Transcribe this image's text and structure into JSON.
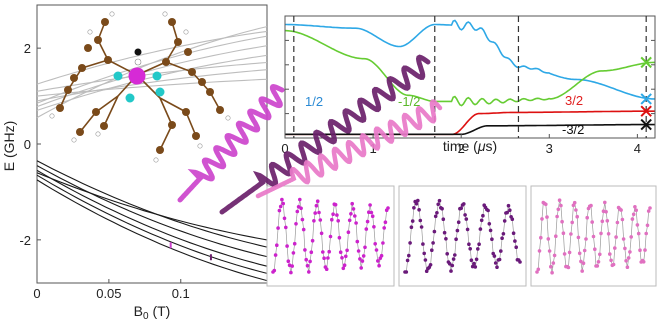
{
  "chart_data": [
    {
      "type": "line",
      "panel": "zeeman-levels",
      "xlabel": "B",
      "xlabel_sub": "0",
      "xlabel_unit": " (T)",
      "ylabel": "E (GHz)",
      "xlim": [
        0,
        0.16
      ],
      "ylim": [
        -2.9,
        2.9
      ],
      "xticks": [
        "0",
        "0.05",
        "0.1"
      ],
      "xtick_values": [
        0,
        0.05,
        0.1
      ],
      "yticks": [
        "2",
        "0",
        "-2"
      ],
      "ytick_values": [
        2,
        0,
        -2
      ],
      "grid": false,
      "series": [
        {
          "group": "upper",
          "color": "#bdbdbd",
          "values": [
            [
              0,
              0.7
            ],
            [
              0.16,
              1.85
            ]
          ]
        },
        {
          "group": "upper",
          "color": "#bdbdbd",
          "values": [
            [
              0,
              0.78
            ],
            [
              0.16,
              2.05
            ]
          ]
        },
        {
          "group": "upper",
          "color": "#bdbdbd",
          "values": [
            [
              0,
              0.85
            ],
            [
              0.16,
              2.25
            ]
          ]
        },
        {
          "group": "upper",
          "color": "#bdbdbd",
          "values": [
            [
              0,
              0.9
            ],
            [
              0.16,
              1.55
            ]
          ]
        },
        {
          "group": "upper",
          "color": "#bdbdbd",
          "values": [
            [
              0,
              1.0
            ],
            [
              0.16,
              1.35
            ]
          ]
        },
        {
          "group": "upper",
          "color": "#bdbdbd",
          "values": [
            [
              0,
              1.1
            ],
            [
              0.16,
              1.7
            ]
          ]
        },
        {
          "group": "upper",
          "color": "#bdbdbd",
          "values": [
            [
              0,
              1.25
            ],
            [
              0.16,
              2.35
            ]
          ]
        },
        {
          "group": "upper",
          "color": "#bdbdbd",
          "values": [
            [
              0,
              0.55
            ],
            [
              0.16,
              2.45
            ]
          ]
        },
        {
          "group": "lower",
          "color": "#1a1a1a",
          "values": [
            [
              0,
              -0.35
            ],
            [
              0.16,
              -2.15
            ]
          ]
        },
        {
          "group": "lower",
          "color": "#1a1a1a",
          "values": [
            [
              0,
              -0.45
            ],
            [
              0.16,
              -2.35
            ]
          ]
        },
        {
          "group": "lower",
          "color": "#1a1a1a",
          "values": [
            [
              0,
              -0.55
            ],
            [
              0.16,
              -2.55
            ]
          ]
        },
        {
          "group": "lower",
          "color": "#1a1a1a",
          "values": [
            [
              0,
              -0.65
            ],
            [
              0.16,
              -2.7
            ]
          ]
        },
        {
          "group": "lower",
          "color": "#1a1a1a",
          "values": [
            [
              0,
              -0.75
            ],
            [
              0.16,
              -2.85
            ]
          ]
        },
        {
          "group": "lower",
          "color": "#1a1a1a",
          "values": [
            [
              0,
              -0.6
            ],
            [
              0.16,
              -2.0
            ]
          ]
        }
      ],
      "transition_markers": [
        {
          "b": 0.093,
          "color": "#cc44cc"
        },
        {
          "b": 0.121,
          "color": "#6a1f6a"
        }
      ]
    },
    {
      "type": "line",
      "panel": "population-dynamics",
      "xlabel": "time (",
      "xlabel_greek": "μ",
      "xlabel_unit": "s)",
      "xlim": [
        0,
        4.2
      ],
      "ylim": [
        0,
        1
      ],
      "xticks": [
        "0",
        "1",
        "2",
        "3",
        "4"
      ],
      "xtick_values": [
        0,
        1,
        2,
        3,
        4
      ],
      "pulse_times": [
        0.1,
        1.7,
        2.65,
        4.1
      ],
      "grid": false,
      "level_labels": [
        {
          "text": "1/2",
          "color": "#2a8ad4"
        },
        {
          "text": "-1/2",
          "color": "#5ab82a"
        },
        {
          "text": "3/2",
          "color": "#e02020"
        },
        {
          "text": "-3/2",
          "color": "#111111"
        }
      ],
      "series": [
        {
          "name": "1/2",
          "color": "#2ea8e6",
          "values": [
            [
              0,
              0.93
            ],
            [
              0.8,
              0.9
            ],
            [
              1.3,
              0.75
            ],
            [
              1.7,
              0.93
            ],
            [
              2.1,
              0.92
            ],
            [
              2.7,
              0.58
            ],
            [
              3.3,
              0.48
            ],
            [
              4.2,
              0.32
            ]
          ]
        },
        {
          "name": "-1/2",
          "color": "#66cc33",
          "values": [
            [
              0,
              0.88
            ],
            [
              0.9,
              0.65
            ],
            [
              1.4,
              0.35
            ],
            [
              1.7,
              0.3
            ],
            [
              2.3,
              0.3
            ],
            [
              3.0,
              0.32
            ],
            [
              3.6,
              0.55
            ],
            [
              4.2,
              0.62
            ]
          ]
        },
        {
          "name": "3/2",
          "color": "#dd1111",
          "values": [
            [
              0,
              0.03
            ],
            [
              1.9,
              0.03
            ],
            [
              2.2,
              0.2
            ],
            [
              2.6,
              0.21
            ],
            [
              4.2,
              0.22
            ]
          ]
        },
        {
          "name": "-3/2",
          "color": "#111111",
          "values": [
            [
              0,
              0.03
            ],
            [
              2.0,
              0.03
            ],
            [
              2.3,
              0.1
            ],
            [
              4.2,
              0.11
            ]
          ]
        }
      ],
      "end_markers": [
        {
          "color": "#66cc33",
          "y": 0.62
        },
        {
          "color": "#2ea8e6",
          "y": 0.32
        },
        {
          "color": "#dd1111",
          "y": 0.22
        },
        {
          "color": "#111111",
          "y": 0.11
        }
      ]
    },
    {
      "type": "scatter",
      "panel": "rabi-oscillations",
      "insets": [
        {
          "color": "#cc22cc",
          "cycles": 6.5
        },
        {
          "color": "#6a1a7a",
          "cycles": 5.0
        },
        {
          "color": "#e070c0",
          "cycles": 7.5
        }
      ]
    }
  ]
}
